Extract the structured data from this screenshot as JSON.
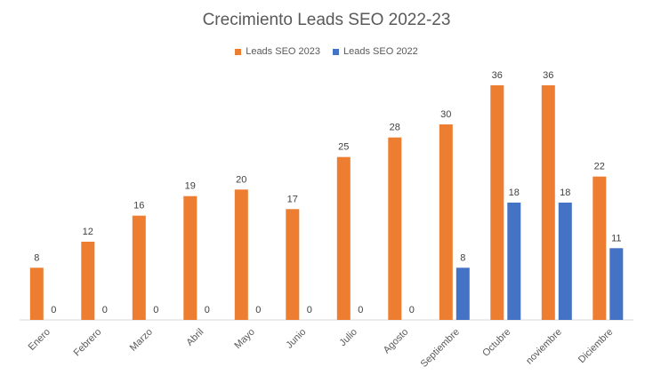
{
  "chart_data": {
    "type": "bar",
    "title": "Crecimiento Leads SEO 2022-23",
    "xlabel": "",
    "ylabel": "",
    "ylim": [
      0,
      38
    ],
    "grid": false,
    "legend_position": "top-center",
    "categories": [
      "Enero",
      "Febrero",
      "Marzo",
      "Abril",
      "Mayo",
      "Junio",
      "Julio",
      "Agosto",
      "Septiembre",
      "Octubre",
      "noviembre",
      "Diciembre"
    ],
    "series": [
      {
        "name": "Leads SEO 2023",
        "color": "#ED7D31",
        "values": [
          8,
          12,
          16,
          19,
          20,
          17,
          25,
          28,
          30,
          36,
          36,
          22
        ]
      },
      {
        "name": "Leads SEO 2022",
        "color": "#4472C4",
        "values": [
          0,
          0,
          0,
          0,
          0,
          0,
          0,
          0,
          8,
          18,
          18,
          11
        ]
      }
    ]
  }
}
